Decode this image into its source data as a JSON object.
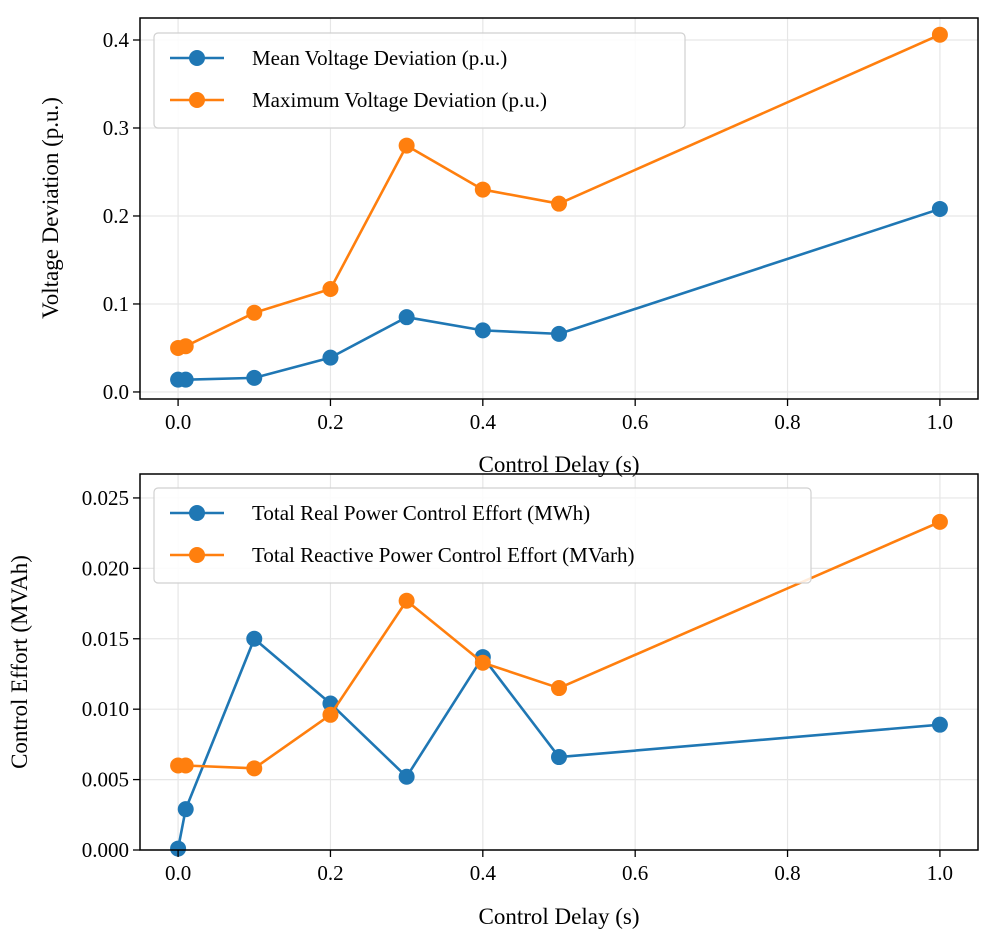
{
  "chart_data": [
    {
      "type": "line",
      "title": "",
      "xlabel": "Control Delay (s)",
      "ylabel": "Voltage Deviation (p.u.)",
      "xlim": [
        -0.05,
        1.05
      ],
      "ylim": [
        -0.008,
        0.425
      ],
      "xticks": [
        0.0,
        0.2,
        0.4,
        0.6,
        0.8,
        1.0
      ],
      "xtick_labels": [
        "0.0",
        "0.2",
        "0.4",
        "0.6",
        "0.8",
        "1.0"
      ],
      "yticks": [
        0.0,
        0.1,
        0.2,
        0.3,
        0.4
      ],
      "ytick_labels": [
        "0.0",
        "0.1",
        "0.2",
        "0.3",
        "0.4"
      ],
      "grid": true,
      "legend_position": "top-left",
      "x": [
        0.0,
        0.01,
        0.1,
        0.2,
        0.3,
        0.4,
        0.5,
        1.0
      ],
      "series": [
        {
          "name": "Mean Voltage Deviation (p.u.)",
          "color": "#1f77b4",
          "values": [
            0.014,
            0.014,
            0.016,
            0.039,
            0.085,
            0.07,
            0.066,
            0.208
          ]
        },
        {
          "name": "Maximum Voltage Deviation (p.u.)",
          "color": "#ff7f0e",
          "values": [
            0.05,
            0.052,
            0.09,
            0.117,
            0.28,
            0.23,
            0.214,
            0.406
          ]
        }
      ]
    },
    {
      "type": "line",
      "title": "",
      "xlabel": "Control Delay (s)",
      "ylabel": "Control Effort (MVAh)",
      "xlim": [
        -0.05,
        1.05
      ],
      "ylim": [
        0.0,
        0.0267
      ],
      "xticks": [
        0.0,
        0.2,
        0.4,
        0.6,
        0.8,
        1.0
      ],
      "xtick_labels": [
        "0.0",
        "0.2",
        "0.4",
        "0.6",
        "0.8",
        "1.0"
      ],
      "yticks": [
        0.0,
        0.005,
        0.01,
        0.015,
        0.02,
        0.025
      ],
      "ytick_labels": [
        "0.000",
        "0.005",
        "0.010",
        "0.015",
        "0.020",
        "0.025"
      ],
      "grid": true,
      "legend_position": "top-left",
      "x": [
        0.0,
        0.01,
        0.1,
        0.2,
        0.3,
        0.4,
        0.5,
        1.0
      ],
      "series": [
        {
          "name": "Total Real Power Control Effort (MWh)",
          "color": "#1f77b4",
          "values": [
            0.0001,
            0.0029,
            0.015,
            0.0104,
            0.0052,
            0.0137,
            0.0066,
            0.0089
          ]
        },
        {
          "name": "Total Reactive Power Control Effort (MVarh)",
          "color": "#ff7f0e",
          "values": [
            0.006,
            0.006,
            0.0058,
            0.0096,
            0.0177,
            0.0133,
            0.0115,
            0.0233
          ]
        }
      ]
    }
  ]
}
